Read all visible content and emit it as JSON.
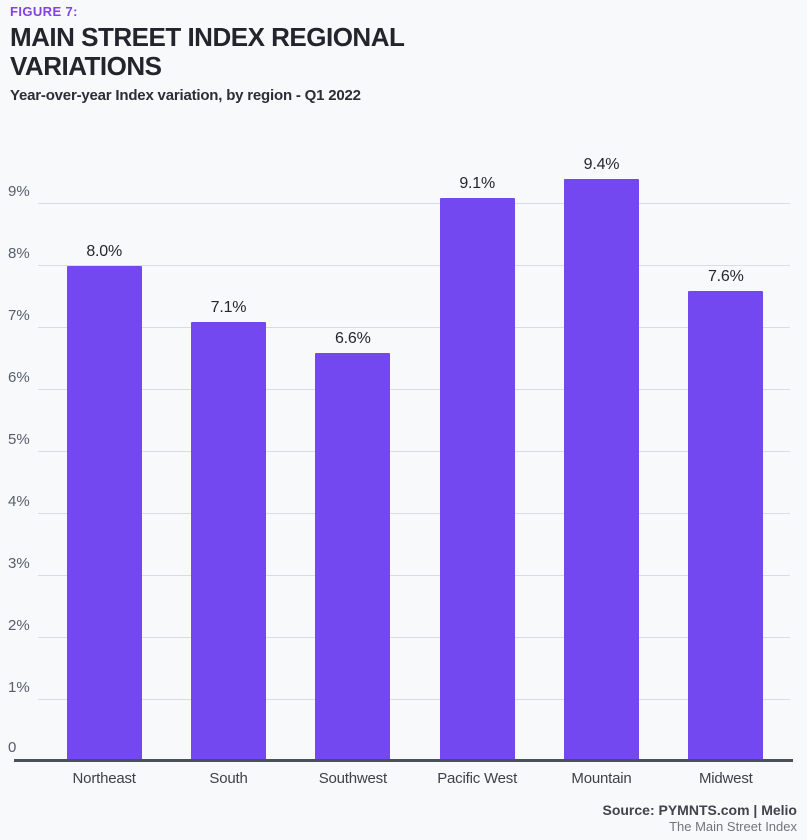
{
  "header": {
    "figure_label": "FIGURE 7:",
    "title": "MAIN STREET INDEX REGIONAL VARIATIONS",
    "subtitle": "Year-over-year Index variation, by region - Q1 2022"
  },
  "chart_data": {
    "type": "bar",
    "categories": [
      "Northeast",
      "South",
      "Southwest",
      "Pacific West",
      "Mountain",
      "Midwest"
    ],
    "values": [
      8.0,
      7.1,
      6.6,
      9.1,
      9.4,
      7.6
    ],
    "value_labels": [
      "8.0%",
      "7.1%",
      "6.6%",
      "9.1%",
      "9.4%",
      "7.6%"
    ],
    "title": "MAIN STREET INDEX REGIONAL VARIATIONS",
    "subtitle": "Year-over-year Index variation, by region - Q1 2022",
    "xlabel": "",
    "ylabel": "",
    "ylim": [
      0,
      9.65
    ],
    "yticks": [
      0,
      1,
      2,
      3,
      4,
      5,
      6,
      7,
      8,
      9
    ],
    "ytick_labels": [
      "0",
      "1%",
      "2%",
      "3%",
      "4%",
      "5%",
      "6%",
      "7%",
      "8%",
      "9%"
    ],
    "grid": "horizontal",
    "legend": "none",
    "bar_color": "#7448f0"
  },
  "footer": {
    "source": "Source: PYMNTS.com  |  Melio",
    "sub": "The Main Street Index"
  },
  "colors": {
    "background": "#f8f9fb",
    "accent_purple": "#8540e6",
    "bar_purple": "#7448f0",
    "gridline": "#d9dce1",
    "baseline": "#4b4f58",
    "title_text": "#22252c",
    "axis_text": "#555e6b"
  }
}
